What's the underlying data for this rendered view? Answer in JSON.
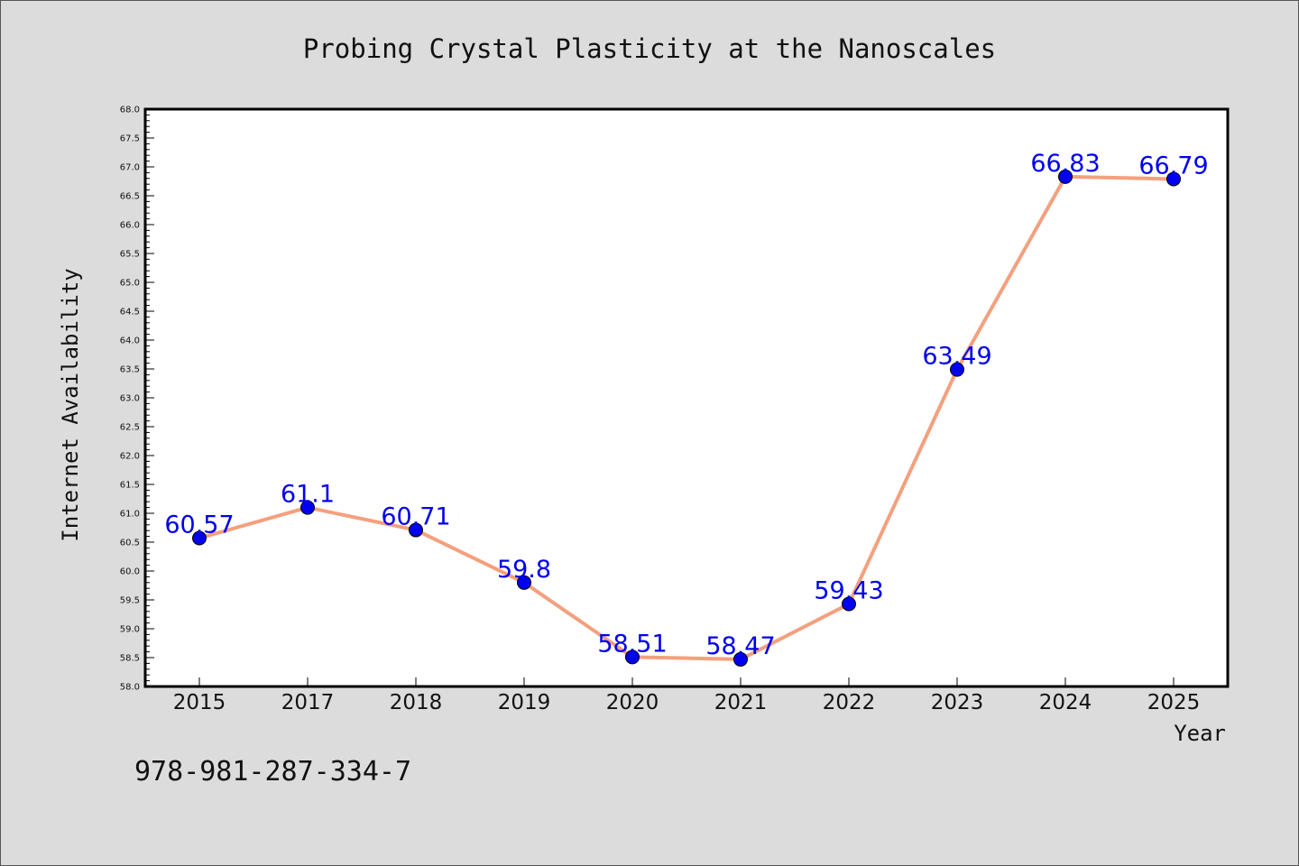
{
  "chart_data": {
    "type": "line",
    "title": "Probing Crystal Plasticity at the Nanoscales",
    "xlabel": "Year",
    "ylabel": "Internet Availability",
    "categories": [
      "2015",
      "2017",
      "2018",
      "2019",
      "2020",
      "2021",
      "2022",
      "2023",
      "2024",
      "2025"
    ],
    "series": [
      {
        "values": [
          60.57,
          61.1,
          60.71,
          59.8,
          58.51,
          58.47,
          59.43,
          63.49,
          66.83,
          66.79
        ],
        "labels": [
          "60.57",
          "61.1",
          "60.71",
          "59.8",
          "58.51",
          "58.47",
          "59.43",
          "63.49",
          "66.83",
          "66.79"
        ],
        "line_color": "#f4a07e",
        "marker_color": "#0000ee"
      }
    ],
    "ylim": [
      58.0,
      68.0
    ],
    "yticks": [
      "58.0",
      "58.5",
      "59.0",
      "59.5",
      "60.0",
      "60.5",
      "61.0",
      "61.5",
      "62.0",
      "62.5",
      "63.0",
      "63.5",
      "64.0",
      "64.5",
      "65.0",
      "65.5",
      "66.0",
      "66.5",
      "67.0",
      "67.5",
      "68.0"
    ],
    "grid": false,
    "label_color": "#0000ee",
    "plot_background": "#ffffff",
    "figure_background": "#dcdcdc"
  },
  "footnote": "978-981-287-334-7"
}
